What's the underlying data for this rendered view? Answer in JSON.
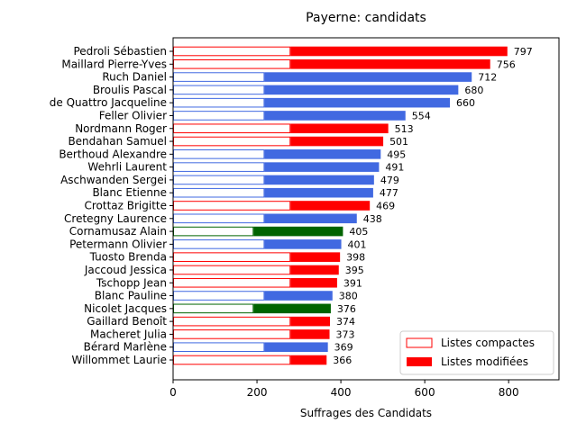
{
  "chart_data": {
    "type": "bar",
    "orientation": "horizontal",
    "title": "Payerne: candidats",
    "xlabel": "Suffrages des Candidats",
    "ylabel": "",
    "xlim": [
      0,
      920
    ],
    "xticks": [
      0,
      200,
      400,
      600,
      800
    ],
    "grid": false,
    "legend_position": "bottom-right",
    "legend": {
      "compact_label": "Listes compactes",
      "modified_label": "Listes modifiées"
    },
    "list_colors": {
      "red": "#ff0000",
      "blue": "#4169e1",
      "green": "#006400"
    },
    "candidates": [
      {
        "name": "Pedroli Sébastien",
        "total": 797,
        "compact": 280,
        "list": "red"
      },
      {
        "name": "Maillard Pierre-Yves",
        "total": 756,
        "compact": 280,
        "list": "red"
      },
      {
        "name": "Ruch Daniel",
        "total": 712,
        "compact": 218,
        "list": "blue"
      },
      {
        "name": "Broulis Pascal",
        "total": 680,
        "compact": 218,
        "list": "blue"
      },
      {
        "name": "de Quattro Jacqueline",
        "total": 660,
        "compact": 218,
        "list": "blue"
      },
      {
        "name": "Feller Olivier",
        "total": 554,
        "compact": 218,
        "list": "blue"
      },
      {
        "name": "Nordmann Roger",
        "total": 513,
        "compact": 280,
        "list": "red"
      },
      {
        "name": "Bendahan Samuel",
        "total": 501,
        "compact": 280,
        "list": "red"
      },
      {
        "name": "Berthoud Alexandre",
        "total": 495,
        "compact": 218,
        "list": "blue"
      },
      {
        "name": "Wehrli Laurent",
        "total": 491,
        "compact": 218,
        "list": "blue"
      },
      {
        "name": "Aschwanden Sergei",
        "total": 479,
        "compact": 218,
        "list": "blue"
      },
      {
        "name": "Blanc Etienne",
        "total": 477,
        "compact": 218,
        "list": "blue"
      },
      {
        "name": "Crottaz Brigitte",
        "total": 469,
        "compact": 280,
        "list": "red"
      },
      {
        "name": "Cretegny Laurence",
        "total": 438,
        "compact": 218,
        "list": "blue"
      },
      {
        "name": "Cornamusaz Alain",
        "total": 405,
        "compact": 192,
        "list": "green"
      },
      {
        "name": "Petermann Olivier",
        "total": 401,
        "compact": 218,
        "list": "blue"
      },
      {
        "name": "Tuosto Brenda",
        "total": 398,
        "compact": 280,
        "list": "red"
      },
      {
        "name": "Jaccoud Jessica",
        "total": 395,
        "compact": 280,
        "list": "red"
      },
      {
        "name": "Tschopp Jean",
        "total": 391,
        "compact": 280,
        "list": "red"
      },
      {
        "name": "Blanc Pauline",
        "total": 380,
        "compact": 218,
        "list": "blue"
      },
      {
        "name": "Nicolet Jacques",
        "total": 376,
        "compact": 192,
        "list": "green"
      },
      {
        "name": "Gaillard Benoît",
        "total": 374,
        "compact": 280,
        "list": "red"
      },
      {
        "name": "Macheret Julia",
        "total": 373,
        "compact": 280,
        "list": "red"
      },
      {
        "name": "Bérard Marlène",
        "total": 369,
        "compact": 218,
        "list": "blue"
      },
      {
        "name": "Willommet Laurie",
        "total": 366,
        "compact": 280,
        "list": "red"
      }
    ]
  }
}
